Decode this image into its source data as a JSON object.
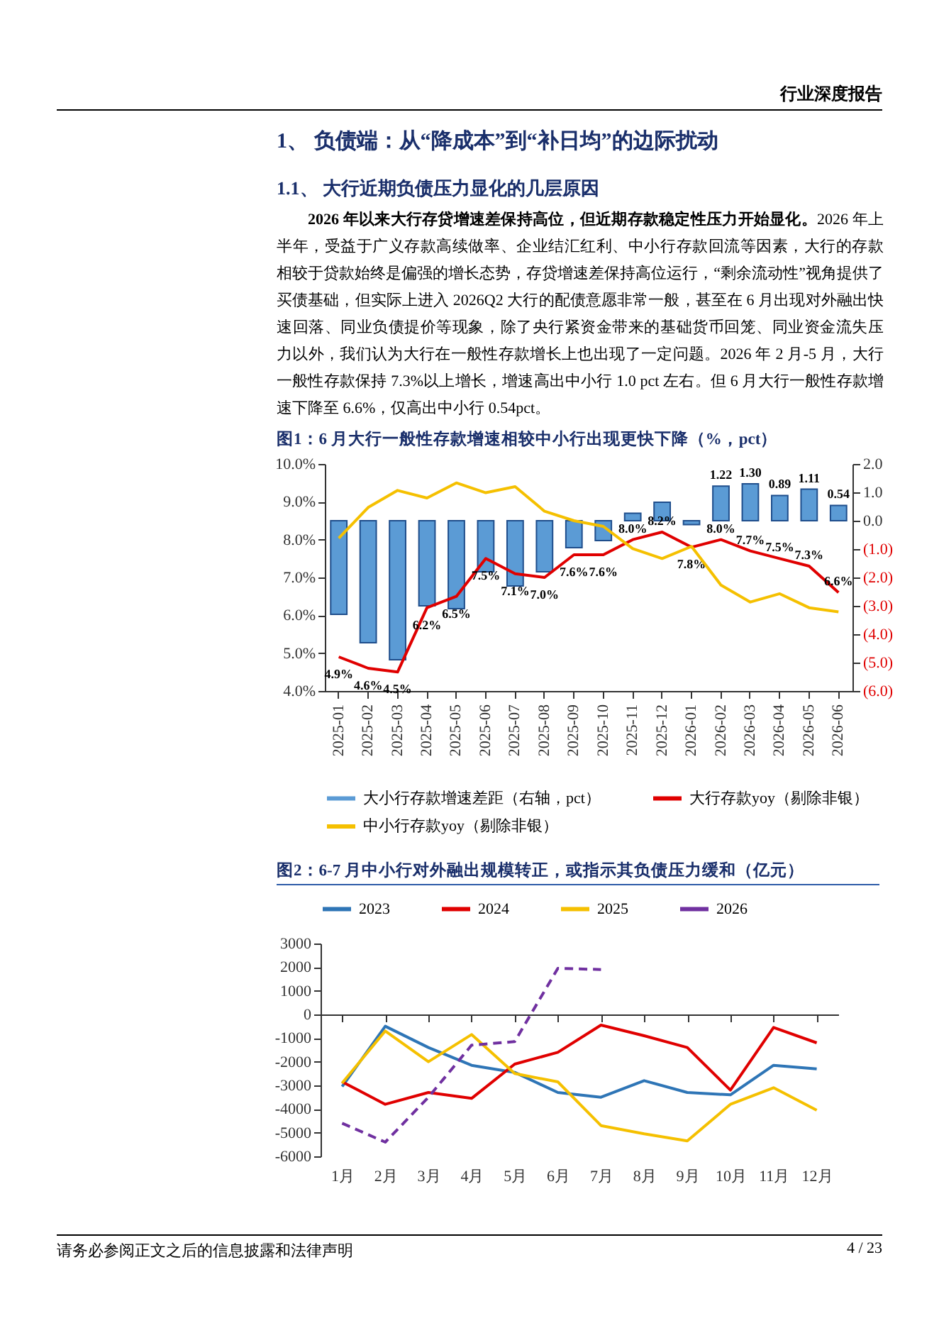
{
  "chart_data": [
    {
      "type": "bar",
      "title": "图1：6 月大行一般性存款增速相较中小行出现更快下降（%，pct）",
      "annotations": [
        "行业深度报告",
        "1、 负债端：从“降成本”到“补日均”的边际扰动",
        "1.1、 大行近期负债压力显化的几层原因",
        "2026 年以来大行存贷增速差保持高位，但近期存款稳定性压力开始显化。",
        "2026 年上半年，受益于广义存款高续做率、企业结汇红利、中小行存款回流等因素，大行的存款相较于贷款始终是偏强的增长态势，存贷增速差保持高位运行，“剩余流动性”视角提供了买债基础，但实际上进入 2026Q2 大行的配债意愿非常一般，甚至在 6 月出现对外融出快速回落、同业负债提价等现象，除了央行紧资金带来的基础货币回笼、同业资金流失压力以外，我们认为大行在一般性存款增长上也出现了一定问题。2026 年 2 月-5 月，大行一般性存款保持 7.3%以上增长，增速高出中小行 1.0 pct 左右。但 6 月大行一般性存款增速下降至 6.6%，仅高出中小行 0.54pct。"
      ],
      "categories": [
        "2025-01",
        "2025-02",
        "2025-03",
        "2025-04",
        "2025-05",
        "2025-06",
        "2025-07",
        "2025-08",
        "2025-09",
        "2025-10",
        "2025-11",
        "2025-12",
        "2026-01",
        "2026-02",
        "2026-03",
        "2026-04",
        "2026-05",
        "2026-06"
      ],
      "series": [
        {
          "name": "大小行存款增速差距（右轴，pct）",
          "color": "#5b9bd5",
          "axis": "y2",
          "values": [
            -3.3,
            -4.3,
            -4.9,
            -3.0,
            -3.1,
            -1.8,
            -2.3,
            -1.8,
            -0.95,
            -0.7,
            0.26,
            0.65,
            -0.14,
            1.22,
            1.3,
            0.89,
            1.11,
            0.54
          ],
          "value_labels": [
            null,
            null,
            null,
            null,
            null,
            null,
            null,
            null,
            null,
            null,
            null,
            null,
            null,
            "1.22",
            "1.30",
            "0.89",
            "1.11",
            "0.54"
          ]
        },
        {
          "name": "大行存款yoy（剔除非银）",
          "type": "line",
          "color": "#e00000",
          "values": [
            4.9,
            4.6,
            4.5,
            6.2,
            6.5,
            7.5,
            7.1,
            7.0,
            7.6,
            7.6,
            8.0,
            8.2,
            7.8,
            8.0,
            7.7,
            7.5,
            7.3,
            6.6
          ],
          "value_labels": [
            "4.9%",
            "4.6%",
            "4.5%",
            "6.2%",
            "6.5%",
            "7.5%",
            "7.1%",
            "7.0%",
            "7.6%",
            "7.6%",
            "8.0%",
            "8.2%",
            "7.8%",
            "8.0%",
            "7.7%",
            "7.5%",
            "7.3%",
            "6.6%"
          ]
        },
        {
          "name": "中小行存款yoy（剔除非银）",
          "type": "line",
          "color": "#f5c000",
          "values": [
            8.04,
            8.85,
            9.3,
            9.1,
            9.5,
            9.24,
            9.4,
            8.75,
            8.5,
            8.35,
            7.76,
            7.5,
            7.82,
            6.8,
            6.35,
            6.57,
            6.2,
            6.09
          ]
        }
      ],
      "ylim": [
        4,
        10
      ],
      "yticks": [
        {
          "value": 4,
          "label": "4.0%"
        },
        {
          "value": 5,
          "label": "5.0%"
        },
        {
          "value": 6,
          "label": "6.0%"
        },
        {
          "value": 7,
          "label": "7.0%"
        },
        {
          "value": 8,
          "label": "8.0%"
        },
        {
          "value": 9,
          "label": "9.0%"
        },
        {
          "value": 10,
          "label": "10.0%"
        }
      ],
      "y2lim": [
        -6,
        2
      ],
      "y2ticks": [
        {
          "value": -6,
          "label": "(6.0)"
        },
        {
          "value": -5,
          "label": "(5.0)"
        },
        {
          "value": -4,
          "label": "(4.0)"
        },
        {
          "value": -3,
          "label": "(3.0)"
        },
        {
          "value": -2,
          "label": "(2.0)"
        },
        {
          "value": -1,
          "label": "(1.0)"
        },
        {
          "value": 0,
          "label": "0.0"
        },
        {
          "value": 1,
          "label": "1.0"
        },
        {
          "value": 2,
          "label": "2.0"
        }
      ],
      "legend": "bottom"
    },
    {
      "type": "line",
      "title": "图2：6-7 月中小行对外融出规模转正，或指示其负债压力缓和（亿元）",
      "annotations": [
        "请务必参阅正文之后的信息披露和法律声明",
        "4 / 23"
      ],
      "categories": [
        "1月",
        "2月",
        "3月",
        "4月",
        "5月",
        "6月",
        "7月",
        "8月",
        "9月",
        "10月",
        "11月",
        "12月"
      ],
      "series": [
        {
          "name": "2023",
          "color": "#2e75b6",
          "values": [
            -3050,
            -500,
            -1400,
            -2150,
            -2450,
            -3300,
            -3500,
            -2800,
            -3300,
            -3400,
            -2150,
            -2300
          ]
        },
        {
          "name": "2024",
          "color": "#e00000",
          "values": [
            -2850,
            -3800,
            -3300,
            -3550,
            -2100,
            -1600,
            -450,
            -900,
            -1400,
            -3200,
            -550,
            -1200
          ]
        },
        {
          "name": "2025",
          "color": "#f5c000",
          "values": [
            -2900,
            -700,
            -2000,
            -850,
            -2500,
            -2850,
            -4700,
            -5050,
            -5350,
            -3800,
            -3100,
            -4050
          ]
        },
        {
          "name": "2026",
          "color": "#7030a0",
          "line_style": "dashed",
          "values": [
            -4600,
            -5400,
            -3500,
            -1300,
            -1150,
            1950,
            1900,
            null,
            null,
            null,
            null,
            null
          ]
        }
      ],
      "ylim": [
        -6000,
        3000
      ],
      "yticks": [
        -6000,
        -5000,
        -4000,
        -3000,
        -2000,
        -1000,
        0,
        1000,
        2000,
        3000
      ],
      "legend": "top"
    }
  ]
}
